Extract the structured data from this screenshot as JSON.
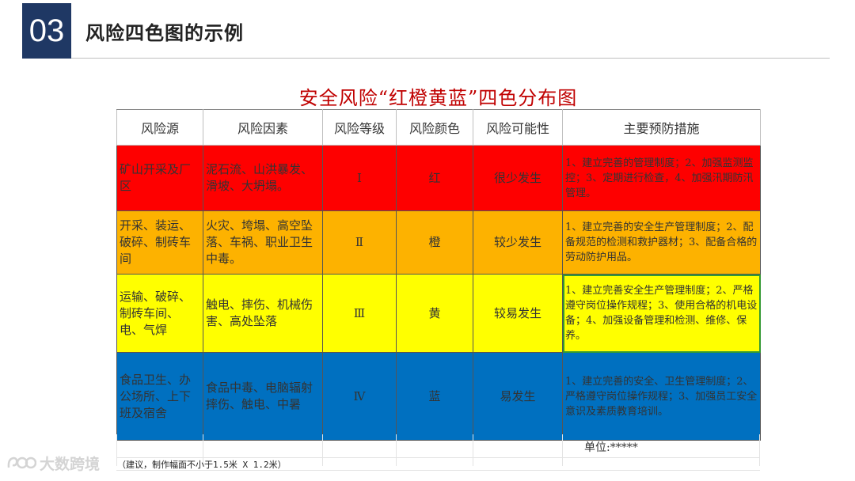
{
  "header": {
    "number": "03",
    "title": "风险四色图的示例"
  },
  "chart": {
    "title": "安全风险“红橙黄蓝”四色分布图"
  },
  "table": {
    "columns": [
      "风险源",
      "风险因素",
      "风险等级",
      "风险颜色",
      "风险可能性",
      "主要预防措施"
    ],
    "rows": [
      {
        "source": "矿山开采及厂区",
        "factors": "泥石流、山洪暴发、滑坡、大坍塌。",
        "level": "Ⅰ",
        "color": "红",
        "likelihood": "很少发生",
        "measures": "1、建立完善的管理制度；2、加强监测监控；3、定期进行检查，4、加强汛期防汛管理。"
      },
      {
        "source": "开采、装运、破碎、制砖车间",
        "factors": "火灾、垮塌、高空坠落、车祸、职业卫生中毒。",
        "level": "Ⅱ",
        "color": "橙",
        "likelihood": "较少发生",
        "measures": "1、建立完善的安全生产管理制度；2、配备规范的检测和救护器材；3、配备合格的劳动防护用品。"
      },
      {
        "source": "运输、破碎、制砖车间、电、气焊",
        "factors": "触电、摔伤、机械伤害、高处坠落",
        "level": "Ⅲ",
        "color": "黄",
        "likelihood": "较易发生",
        "measures": "1、建立完善安全生产管理制度；2、严格遵守岗位操作规程；3、使用合格的机电设备；4、加强设备管理和检测、维修、保养。"
      },
      {
        "source": "食品卫生、办公场所、上下班及宿舍",
        "factors": "食品中毒、电脑辐射摔伤、触电、中暑",
        "level": "Ⅳ",
        "color": "蓝",
        "likelihood": "易发生",
        "measures": "1、建立完善的安全、卫生管理制度；2、严格遵守岗位操作规程；3、加强员工安全意识及素质教育培训。"
      }
    ],
    "row_colors": [
      "#fe0000",
      "#fdb200",
      "#ffff00",
      "#0070c0"
    ]
  },
  "footer": {
    "unit": "单位:*****",
    "note": "（建议，制作幅面不小于1.5米 X 1.2米）"
  },
  "watermark": {
    "text": "大数跨境"
  }
}
